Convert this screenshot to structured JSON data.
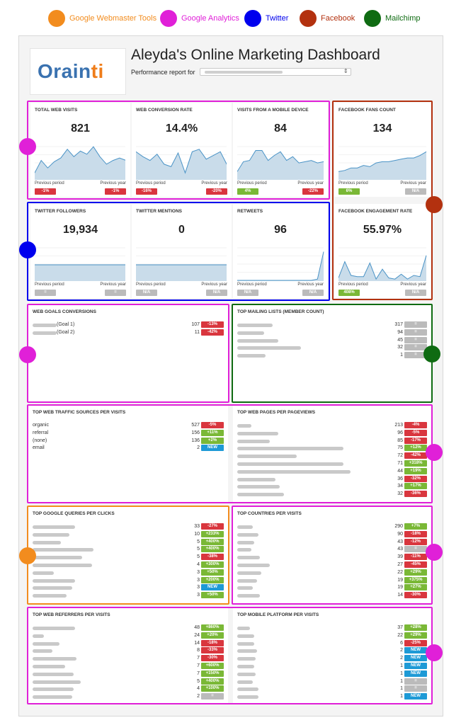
{
  "legend": [
    {
      "label": "Google Webmaster Tools",
      "color": "#f28c1e",
      "text_color": "#f28c1e"
    },
    {
      "label": "Google Analytics",
      "color": "#e020d8",
      "text_color": "#e020d8"
    },
    {
      "label": "Twitter",
      "color": "#0000ee",
      "text_color": "#0000ee"
    },
    {
      "label": "Facebook",
      "color": "#b3310f",
      "text_color": "#b3310f"
    },
    {
      "label": "Mailchimp",
      "color": "#0f6b12",
      "text_color": "#0f6b12"
    }
  ],
  "header": {
    "logo_part1": "Orain",
    "logo_part2": "ti",
    "title": "Aleyda's Online Marketing Dashboard",
    "performance_label": "Performance report for"
  },
  "common": {
    "previous_period": "Previous period",
    "previous_year": "Previous year"
  },
  "kpis": [
    {
      "id": "total-web-visits",
      "title": "TOTAL WEB VISITS",
      "value": "821",
      "period": "-1%",
      "period_color": "red",
      "year": "-1%",
      "year_color": "red",
      "spark": [
        10,
        30,
        18,
        28,
        34,
        48,
        36,
        45,
        40,
        52,
        36,
        24,
        30,
        34,
        30
      ]
    },
    {
      "id": "web-conversion-rate",
      "title": "WEB CONVERSION RATE",
      "value": "14.4%",
      "period": "-16%",
      "period_color": "red",
      "year": "-20%",
      "year_color": "red",
      "spark": [
        44,
        36,
        30,
        40,
        24,
        20,
        42,
        10,
        44,
        48,
        32,
        38,
        44,
        22
      ]
    },
    {
      "id": "visits-from-mobile",
      "title": "VISITS FROM A MOBILE DEVICE",
      "value": "84",
      "period": "4%",
      "period_color": "green",
      "year": "-22%",
      "year_color": "red",
      "spark": [
        12,
        28,
        30,
        46,
        46,
        30,
        38,
        44,
        30,
        36,
        26,
        28,
        30,
        26,
        28
      ]
    },
    {
      "id": "facebook-fans-count",
      "title": "FACEBOOK FANS COUNT",
      "value": "134",
      "period": "6%",
      "period_color": "green",
      "year": "N/A",
      "year_color": "grey",
      "spark": [
        12,
        14,
        18,
        18,
        22,
        20,
        26,
        28,
        28,
        30,
        32,
        34,
        34,
        38,
        44
      ]
    },
    {
      "id": "twitter-followers",
      "title": "TWITTER FOLLOWERS",
      "value": "19,934",
      "period": "=",
      "period_color": "grey",
      "year": "=",
      "year_color": "grey",
      "spark": [
        25,
        25,
        25,
        25,
        25,
        25,
        25,
        25,
        25,
        25,
        25,
        25,
        25,
        25,
        25
      ]
    },
    {
      "id": "twitter-mentions",
      "title": "TWITTER MENTIONS",
      "value": "0",
      "period": "N/A",
      "period_color": "grey",
      "year": "N/A",
      "year_color": "grey",
      "spark": [
        25,
        25,
        25,
        25,
        25,
        25,
        25,
        25,
        25,
        25,
        25,
        25,
        25,
        25,
        25
      ]
    },
    {
      "id": "retweets",
      "title": "RETWEETS",
      "value": "96",
      "period": "N/A",
      "period_color": "grey",
      "year": "N/A",
      "year_color": "grey",
      "spark": [
        0,
        0,
        0,
        0,
        0,
        0,
        0,
        0,
        0,
        0,
        0,
        0,
        0,
        2,
        46
      ]
    },
    {
      "id": "facebook-engagement-rate",
      "title": "FACEBOOK ENGAGEMENT RATE",
      "value": "55.97%",
      "period": "408%",
      "period_color": "green",
      "year": "N/A",
      "year_color": "grey",
      "spark": [
        4,
        30,
        8,
        6,
        6,
        28,
        2,
        18,
        4,
        2,
        10,
        2,
        8,
        6,
        40
      ]
    }
  ],
  "panels": {
    "web_goals": {
      "title": "WEB GOALS CONVERSIONS",
      "rows": [
        {
          "label": "(Goal 1)",
          "value": "107",
          "badge": "-13%",
          "color": "red"
        },
        {
          "label": "(Goal 2)",
          "value": "11",
          "badge": "-42%",
          "color": "red"
        }
      ]
    },
    "mailing_lists": {
      "title": "TOP MAILING LISTS (MEMBER COUNT)",
      "rows": [
        {
          "value": "317",
          "badge": "=",
          "color": "grey"
        },
        {
          "value": "94",
          "badge": "=",
          "color": "grey"
        },
        {
          "value": "45",
          "badge": "=",
          "color": "grey"
        },
        {
          "value": "32",
          "badge": "=",
          "color": "grey"
        },
        {
          "value": "1",
          "badge": "=",
          "color": "grey"
        }
      ]
    },
    "traffic_sources": {
      "title": "TOP WEB TRAFFIC SOURCES PER VISITS",
      "rows": [
        {
          "label": "organic",
          "value": "527",
          "badge": "-5%",
          "color": "red"
        },
        {
          "label": "referral",
          "value": "156",
          "badge": "+11%",
          "color": "green"
        },
        {
          "label": "(none)",
          "value": "136",
          "badge": "+2%",
          "color": "green"
        },
        {
          "label": "email",
          "value": "2",
          "badge": "NEW",
          "color": "blue"
        }
      ]
    },
    "web_pages": {
      "title": "TOP WEB PAGES PER PAGEVIEWS",
      "rows": [
        {
          "value": "213",
          "badge": "-4%",
          "color": "red"
        },
        {
          "value": "96",
          "badge": "-5%",
          "color": "red"
        },
        {
          "value": "85",
          "badge": "-17%",
          "color": "red"
        },
        {
          "value": "75",
          "badge": "+12%",
          "color": "green"
        },
        {
          "value": "72",
          "badge": "-42%",
          "color": "red"
        },
        {
          "value": "71",
          "badge": "+318%",
          "color": "green"
        },
        {
          "value": "44",
          "badge": "+19%",
          "color": "green"
        },
        {
          "value": "36",
          "badge": "-32%",
          "color": "red"
        },
        {
          "value": "34",
          "badge": "+17%",
          "color": "green"
        },
        {
          "value": "32",
          "badge": "-36%",
          "color": "red"
        }
      ]
    },
    "google_queries": {
      "title": "TOP GOOGLE QUERIES PER CLICKS",
      "rows": [
        {
          "value": "33",
          "badge": "-27%",
          "color": "red"
        },
        {
          "value": "10",
          "badge": "+233%",
          "color": "green"
        },
        {
          "value": "5",
          "badge": "+400%",
          "color": "green"
        },
        {
          "value": "5",
          "badge": "+400%",
          "color": "green"
        },
        {
          "value": "5",
          "badge": "-38%",
          "color": "red"
        },
        {
          "value": "4",
          "badge": "+300%",
          "color": "green"
        },
        {
          "value": "3",
          "badge": "+50%",
          "color": "green"
        },
        {
          "value": "3",
          "badge": "+200%",
          "color": "green"
        },
        {
          "value": "3",
          "badge": "NEW",
          "color": "blue"
        },
        {
          "value": "3",
          "badge": "+50%",
          "color": "green"
        }
      ]
    },
    "countries": {
      "title": "TOP COUNTRIES PER VISITS",
      "rows": [
        {
          "value": "290",
          "badge": "+7%",
          "color": "green"
        },
        {
          "value": "90",
          "badge": "-18%",
          "color": "red"
        },
        {
          "value": "43",
          "badge": "-12%",
          "color": "red"
        },
        {
          "value": "43",
          "badge": "=",
          "color": "grey"
        },
        {
          "value": "39",
          "badge": "-11%",
          "color": "red"
        },
        {
          "value": "27",
          "badge": "-45%",
          "color": "red"
        },
        {
          "value": "22",
          "badge": "+29%",
          "color": "green"
        },
        {
          "value": "19",
          "badge": "+375%",
          "color": "green"
        },
        {
          "value": "19",
          "badge": "+27%",
          "color": "green"
        },
        {
          "value": "14",
          "badge": "-30%",
          "color": "red"
        }
      ]
    },
    "web_referrers": {
      "title": "TOP WEB REFERRERS PER VISITS",
      "rows": [
        {
          "value": "48",
          "badge": "+860%",
          "color": "green"
        },
        {
          "value": "24",
          "badge": "+20%",
          "color": "green"
        },
        {
          "value": "14",
          "badge": "-18%",
          "color": "red"
        },
        {
          "value": "8",
          "badge": "-33%",
          "color": "red"
        },
        {
          "value": "7",
          "badge": "-30%",
          "color": "red"
        },
        {
          "value": "7",
          "badge": "+600%",
          "color": "green"
        },
        {
          "value": "7",
          "badge": "+150%",
          "color": "green"
        },
        {
          "value": "5",
          "badge": "+400%",
          "color": "green"
        },
        {
          "value": "4",
          "badge": "+100%",
          "color": "green"
        },
        {
          "value": "2",
          "badge": "=",
          "color": "grey"
        }
      ]
    },
    "mobile_platform": {
      "title": "TOP MOBILE PLATFORM PER VISITS",
      "rows": [
        {
          "value": "37",
          "badge": "+28%",
          "color": "green"
        },
        {
          "value": "22",
          "badge": "+29%",
          "color": "green"
        },
        {
          "value": "6",
          "badge": "-25%",
          "color": "red"
        },
        {
          "value": "2",
          "badge": "NEW",
          "color": "blue"
        },
        {
          "value": "2",
          "badge": "NEW",
          "color": "blue"
        },
        {
          "value": "1",
          "badge": "NEW",
          "color": "blue"
        },
        {
          "value": "1",
          "badge": "NEW",
          "color": "blue"
        },
        {
          "value": "1",
          "badge": "=",
          "color": "grey"
        },
        {
          "value": "1",
          "badge": "=",
          "color": "grey"
        },
        {
          "value": "1",
          "badge": "NEW",
          "color": "blue"
        }
      ]
    }
  }
}
